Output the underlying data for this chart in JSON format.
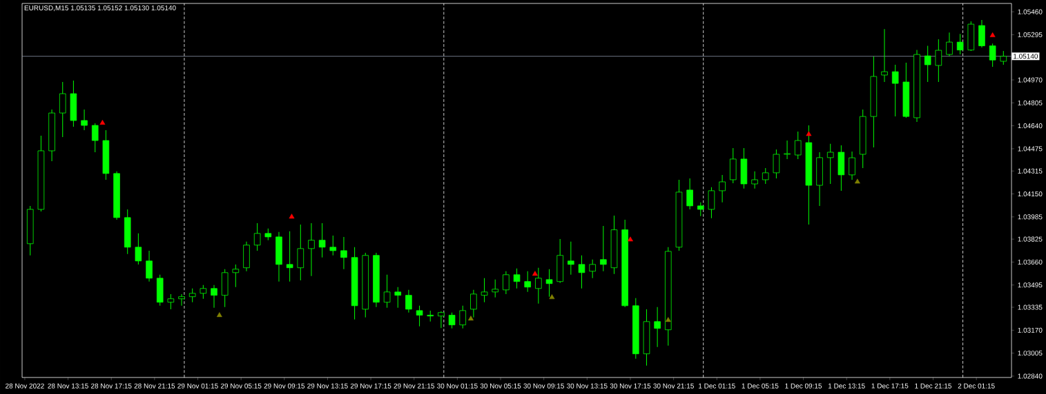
{
  "chart_data": {
    "type": "candlestick",
    "title": "EURUSD,M15  1.05135 1.05152 1.05130 1.05140",
    "color": "#00ff00",
    "x": [
      "2022-11-28T09:45",
      "2022-11-28T10:45",
      "2022-11-28T11:45",
      "2022-11-28T12:45",
      "2022-11-28T13:45",
      "2022-11-28T14:45",
      "2022-11-28T15:45",
      "2022-11-28T16:45",
      "2022-11-28T17:45",
      "2022-11-28T18:45",
      "2022-11-28T19:45",
      "2022-11-28T20:45",
      "2022-11-28T21:45",
      "2022-11-28T22:45",
      "2022-11-28T23:45",
      "2022-11-29T00:45",
      "2022-11-29T01:45",
      "2022-11-29T02:45",
      "2022-11-29T03:45",
      "2022-11-29T04:45",
      "2022-11-29T05:45",
      "2022-11-29T06:45",
      "2022-11-29T07:45",
      "2022-11-29T08:45",
      "2022-11-29T09:45",
      "2022-11-29T10:45",
      "2022-11-29T11:45",
      "2022-11-29T12:45",
      "2022-11-29T13:45",
      "2022-11-29T14:45",
      "2022-11-29T15:45",
      "2022-11-29T16:45",
      "2022-11-29T17:45",
      "2022-11-29T18:45",
      "2022-11-29T19:45",
      "2022-11-29T20:45",
      "2022-11-29T21:45",
      "2022-11-29T22:45",
      "2022-11-29T23:45",
      "2022-11-30T00:45",
      "2022-11-30T01:45",
      "2022-11-30T02:45",
      "2022-11-30T03:45",
      "2022-11-30T04:45",
      "2022-11-30T05:45",
      "2022-11-30T06:45",
      "2022-11-30T07:45",
      "2022-11-30T08:45",
      "2022-11-30T09:45",
      "2022-11-30T10:45",
      "2022-11-30T11:45",
      "2022-11-30T12:45",
      "2022-11-30T13:45",
      "2022-11-30T14:45",
      "2022-11-30T15:45",
      "2022-11-30T16:45",
      "2022-11-30T17:45",
      "2022-11-30T18:45",
      "2022-11-30T19:45",
      "2022-11-30T20:45",
      "2022-11-30T21:45",
      "2022-11-30T22:45",
      "2022-11-30T23:45",
      "2022-12-01T00:45",
      "2022-12-01T01:45",
      "2022-12-01T02:45",
      "2022-12-01T03:45",
      "2022-12-01T04:45",
      "2022-12-01T05:45",
      "2022-12-01T06:45",
      "2022-12-01T07:45",
      "2022-12-01T08:45",
      "2022-12-01T09:45",
      "2022-12-01T10:45",
      "2022-12-01T11:45",
      "2022-12-01T12:45",
      "2022-12-01T13:45",
      "2022-12-01T14:45",
      "2022-12-01T15:45",
      "2022-12-01T16:45",
      "2022-12-01T17:45",
      "2022-12-01T18:45",
      "2022-12-01T19:45",
      "2022-12-01T20:45",
      "2022-12-01T21:45",
      "2022-12-01T22:45",
      "2022-12-01T23:45",
      "2022-12-02T00:45",
      "2022-12-02T01:45",
      "2022-12-02T02:45",
      "2022-12-02T03:45"
    ],
    "ohlc": [
      [
        1.03792,
        1.04064,
        1.03708,
        1.04039
      ],
      [
        1.04039,
        1.04569,
        1.04024,
        1.0446
      ],
      [
        1.0446,
        1.04757,
        1.04386,
        1.04732
      ],
      [
        1.04732,
        1.04955,
        1.04559,
        1.04871
      ],
      [
        1.04871,
        1.04965,
        1.04633,
        1.04678
      ],
      [
        1.04678,
        1.04757,
        1.04608,
        1.04643
      ],
      [
        1.04643,
        1.04658,
        1.0445,
        1.04534
      ],
      [
        1.04534,
        1.04608,
        1.04252,
        1.04297
      ],
      [
        1.04297,
        1.04312,
        1.03965,
        1.0398
      ],
      [
        1.0398,
        1.04039,
        1.03718,
        1.03767
      ],
      [
        1.03767,
        1.03866,
        1.03643,
        1.03668
      ],
      [
        1.03668,
        1.03742,
        1.0352,
        1.03544
      ],
      [
        1.03544,
        1.03569,
        1.03346,
        1.03371
      ],
      [
        1.03371,
        1.0343,
        1.03321,
        1.03396
      ],
      [
        1.03396,
        1.0343,
        1.03346,
        1.03411
      ],
      [
        1.03411,
        1.0347,
        1.03371,
        1.03435
      ],
      [
        1.03435,
        1.03495,
        1.03396,
        1.0347
      ],
      [
        1.0347,
        1.03495,
        1.03331,
        1.03421
      ],
      [
        1.03421,
        1.03609,
        1.03336,
        1.03584
      ],
      [
        1.03584,
        1.03643,
        1.0348,
        1.03609
      ],
      [
        1.03619,
        1.03807,
        1.03594,
        1.03782
      ],
      [
        1.03782,
        1.0394,
        1.03742,
        1.03866
      ],
      [
        1.03866,
        1.03901,
        1.03817,
        1.03841
      ],
      [
        1.03841,
        1.03876,
        1.0352,
        1.03643
      ],
      [
        1.03643,
        1.03881,
        1.0352,
        1.03619
      ],
      [
        1.03619,
        1.0393,
        1.03529,
        1.03757
      ],
      [
        1.03757,
        1.0394,
        1.03559,
        1.03817
      ],
      [
        1.03817,
        1.0394,
        1.03693,
        1.03767
      ],
      [
        1.03767,
        1.03851,
        1.03708,
        1.03742
      ],
      [
        1.03742,
        1.03841,
        1.03609,
        1.03693
      ],
      [
        1.03693,
        1.03767,
        1.03247,
        1.03346
      ],
      [
        1.03321,
        1.03727,
        1.03262,
        1.03708
      ],
      [
        1.03708,
        1.03727,
        1.03336,
        1.03371
      ],
      [
        1.03371,
        1.03569,
        1.03331,
        1.03445
      ],
      [
        1.03445,
        1.0348,
        1.03331,
        1.03421
      ],
      [
        1.03421,
        1.0346,
        1.03297,
        1.03321
      ],
      [
        1.03311,
        1.03346,
        1.03198,
        1.03278
      ],
      [
        1.03278,
        1.03311,
        1.03232,
        1.03272
      ],
      [
        1.03272,
        1.03306,
        1.03185,
        1.03297
      ],
      [
        1.03278,
        1.03297,
        1.03183,
        1.03208
      ],
      [
        1.03208,
        1.03346,
        1.03183,
        1.03311
      ],
      [
        1.03321,
        1.0346,
        1.03262,
        1.0343
      ],
      [
        1.03421,
        1.03544,
        1.03371,
        1.03445
      ],
      [
        1.03445,
        1.03535,
        1.03406,
        1.03465
      ],
      [
        1.0346,
        1.03594,
        1.0343,
        1.03569
      ],
      [
        1.03569,
        1.03614,
        1.0347,
        1.0352
      ],
      [
        1.0352,
        1.03594,
        1.03445,
        1.0348
      ],
      [
        1.0347,
        1.03619,
        1.03361,
        1.03544
      ],
      [
        1.03534,
        1.03609,
        1.03411,
        1.03505
      ],
      [
        1.0352,
        1.03826,
        1.0351,
        1.03708
      ],
      [
        1.03668,
        1.03807,
        1.03569,
        1.03643
      ],
      [
        1.03643,
        1.03708,
        1.0347,
        1.03584
      ],
      [
        1.03594,
        1.03678,
        1.03544,
        1.03643
      ],
      [
        1.03678,
        1.0392,
        1.03594,
        1.03643
      ],
      [
        1.03619,
        1.03994,
        1.03574,
        1.03892
      ],
      [
        1.03892,
        1.03965,
        1.03336,
        1.03346
      ],
      [
        1.03346,
        1.03401,
        1.02965,
        1.03
      ],
      [
        1.03,
        1.03321,
        1.02916,
        1.03232
      ],
      [
        1.03232,
        1.03336,
        1.03049,
        1.03183
      ],
      [
        1.03173,
        1.03767,
        1.03059,
        1.03737
      ],
      [
        1.03767,
        1.04252,
        1.03742,
        1.04163
      ],
      [
        1.04178,
        1.04262,
        1.04039,
        1.04064
      ],
      [
        1.04064,
        1.04089,
        1.0399,
        1.04039
      ],
      [
        1.04039,
        1.04198,
        1.03975,
        1.04173
      ],
      [
        1.04173,
        1.04287,
        1.04089,
        1.04237
      ],
      [
        1.04252,
        1.0448,
        1.04227,
        1.04401
      ],
      [
        1.04401,
        1.0448,
        1.04188,
        1.04222
      ],
      [
        1.04222,
        1.04312,
        1.04188,
        1.04252
      ],
      [
        1.04252,
        1.04336,
        1.04222,
        1.04302
      ],
      [
        1.04302,
        1.0447,
        1.04262,
        1.04435
      ],
      [
        1.04435,
        1.04534,
        1.04401,
        1.0444
      ],
      [
        1.0443,
        1.04599,
        1.04401,
        1.04534
      ],
      [
        1.04519,
        1.04643,
        1.0393,
        1.04212
      ],
      [
        1.04212,
        1.0445,
        1.04064,
        1.04411
      ],
      [
        1.04411,
        1.0451,
        1.04222,
        1.0445
      ],
      [
        1.0445,
        1.045,
        1.04173,
        1.04287
      ],
      [
        1.04287,
        1.04455,
        1.04252,
        1.0441
      ],
      [
        1.04435,
        1.04757,
        1.04336,
        1.04707
      ],
      [
        1.04707,
        1.05138,
        1.04485,
        1.04995
      ],
      [
        1.05005,
        1.05336,
        1.04955,
        1.05029
      ],
      [
        1.05029,
        1.05079,
        1.04707,
        1.04945
      ],
      [
        1.04955,
        1.05094,
        1.04698,
        1.04707
      ],
      [
        1.04698,
        1.05185,
        1.04668,
        1.05153
      ],
      [
        1.05143,
        1.05215,
        1.04955,
        1.05079
      ],
      [
        1.05074,
        1.05262,
        1.04955,
        1.05183
      ],
      [
        1.05153,
        1.05311,
        1.05141,
        1.05242
      ],
      [
        1.05242,
        1.05301,
        1.05153,
        1.05185
      ],
      [
        1.05185,
        1.05391,
        1.05178,
        1.05371
      ],
      [
        1.05361,
        1.05401,
        1.05203,
        1.05215
      ],
      [
        1.05215,
        1.05231,
        1.05064,
        1.05113
      ],
      [
        1.05104,
        1.05178,
        1.05079,
        1.0514
      ]
    ],
    "series": [
      {
        "type": "scatter",
        "color": "#ff0000",
        "marker": "triangle",
        "x": [
          "2022-11-28T16:26",
          "2022-11-29T09:56",
          "2022-11-30T08:26",
          "2022-11-30T17:15",
          "2022-12-01T09:45",
          "2022-12-02T02:45"
        ],
        "values": [
          1.0466,
          1.03985,
          1.03574,
          1.03821,
          1.04579,
          1.0529
        ]
      },
      {
        "type": "scatter",
        "color": "#808000",
        "marker": "triangle",
        "x": [
          "2022-11-29T03:15",
          "2022-11-30T02:30",
          "2022-11-30T10:00",
          "2022-11-30T20:45",
          "2022-12-01T14:15"
        ],
        "values": [
          1.03277,
          1.03252,
          1.03406,
          1.03242,
          1.04237
        ]
      }
    ],
    "xlim": [
      "2022-11-28T09:00",
      "2022-12-02T04:30"
    ],
    "ylim": [
      1.0283,
      1.0552
    ],
    "xticks": [
      {
        "value": "2022-11-28T09:15",
        "label": "28 Nov 2022"
      },
      {
        "value": "2022-11-28T13:15",
        "label": "28 Nov 13:15"
      },
      {
        "value": "2022-11-28T17:15",
        "label": "28 Nov 17:15"
      },
      {
        "value": "2022-11-28T21:15",
        "label": "28 Nov 21:15"
      },
      {
        "value": "2022-11-29T01:15",
        "label": "29 Nov 01:15"
      },
      {
        "value": "2022-11-29T05:15",
        "label": "29 Nov 05:15"
      },
      {
        "value": "2022-11-29T09:15",
        "label": "29 Nov 09:15"
      },
      {
        "value": "2022-11-29T13:15",
        "label": "29 Nov 13:15"
      },
      {
        "value": "2022-11-29T17:15",
        "label": "29 Nov 17:15"
      },
      {
        "value": "2022-11-29T21:15",
        "label": "29 Nov 21:15"
      },
      {
        "value": "2022-11-30T01:15",
        "label": "30 Nov 01:15"
      },
      {
        "value": "2022-11-30T05:15",
        "label": "30 Nov 05:15"
      },
      {
        "value": "2022-11-30T09:15",
        "label": "30 Nov 09:15"
      },
      {
        "value": "2022-11-30T13:15",
        "label": "30 Nov 13:15"
      },
      {
        "value": "2022-11-30T17:15",
        "label": "30 Nov 17:15"
      },
      {
        "value": "2022-11-30T21:15",
        "label": "30 Nov 21:15"
      },
      {
        "value": "2022-12-01T01:15",
        "label": "1 Dec 01:15"
      },
      {
        "value": "2022-12-01T05:15",
        "label": "1 Dec 05:15"
      },
      {
        "value": "2022-12-01T09:15",
        "label": "1 Dec 09:15"
      },
      {
        "value": "2022-12-01T13:15",
        "label": "1 Dec 13:15"
      },
      {
        "value": "2022-12-01T17:15",
        "label": "1 Dec 17:15"
      },
      {
        "value": "2022-12-01T21:15",
        "label": "1 Dec 21:15"
      },
      {
        "value": "2022-12-02T01:15",
        "label": "2 Dec 01:15"
      }
    ],
    "yticks": [
      {
        "value": 1.0284,
        "label": "1.02840"
      },
      {
        "value": 1.03005,
        "label": "1.03005"
      },
      {
        "value": 1.0317,
        "label": "1.03170"
      },
      {
        "value": 1.03335,
        "label": "1.03335"
      },
      {
        "value": 1.03495,
        "label": "1.03495"
      },
      {
        "value": 1.0366,
        "label": "1.03660"
      },
      {
        "value": 1.03825,
        "label": "1.03825"
      },
      {
        "value": 1.03985,
        "label": "1.03985"
      },
      {
        "value": 1.0415,
        "label": "1.04150"
      },
      {
        "value": 1.04315,
        "label": "1.04315"
      },
      {
        "value": 1.04475,
        "label": "1.04475"
      },
      {
        "value": 1.0464,
        "label": "1.04640"
      },
      {
        "value": 1.04805,
        "label": "1.04805"
      },
      {
        "value": 1.0497,
        "label": "1.04970"
      },
      {
        "value": 1.05295,
        "label": "1.05295"
      },
      {
        "value": 1.0546,
        "label": "1.05460"
      }
    ],
    "ref_lines": [
      {
        "axis": "y",
        "value": 1.0514,
        "label": "1.05140",
        "color": "#8a96a6",
        "line_style": "solid"
      },
      {
        "axis": "x",
        "value": "2022-11-29",
        "color": "#ffffff",
        "line_style": "dashed"
      },
      {
        "axis": "x",
        "value": "2022-11-30",
        "color": "#ffffff",
        "line_style": "dashed"
      },
      {
        "axis": "x",
        "value": "2022-12-01",
        "color": "#ffffff",
        "line_style": "dashed"
      },
      {
        "axis": "x",
        "value": "2022-12-02",
        "color": "#ffffff",
        "line_style": "dashed"
      }
    ]
  }
}
